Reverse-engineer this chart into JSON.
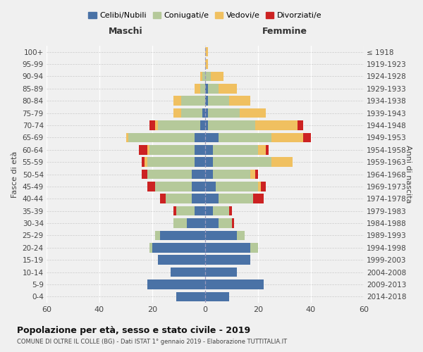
{
  "age_groups": [
    "0-4",
    "5-9",
    "10-14",
    "15-19",
    "20-24",
    "25-29",
    "30-34",
    "35-39",
    "40-44",
    "45-49",
    "50-54",
    "55-59",
    "60-64",
    "65-69",
    "70-74",
    "75-79",
    "80-84",
    "85-89",
    "90-94",
    "95-99",
    "100+"
  ],
  "birth_years": [
    "2014-2018",
    "2009-2013",
    "2004-2008",
    "1999-2003",
    "1994-1998",
    "1989-1993",
    "1984-1988",
    "1979-1983",
    "1974-1978",
    "1969-1973",
    "1964-1968",
    "1959-1963",
    "1954-1958",
    "1949-1953",
    "1944-1948",
    "1939-1943",
    "1934-1938",
    "1929-1933",
    "1924-1928",
    "1919-1923",
    "≤ 1918"
  ],
  "colors": {
    "celibi": "#4a72a6",
    "coniugati": "#b5c99a",
    "vedovi": "#f0c060",
    "divorziati": "#cc2222"
  },
  "maschi": {
    "celibi": [
      11,
      22,
      13,
      18,
      20,
      17,
      7,
      4,
      5,
      5,
      5,
      4,
      4,
      4,
      2,
      1,
      0,
      0,
      0,
      0,
      0
    ],
    "coniugati": [
      0,
      0,
      0,
      0,
      1,
      2,
      5,
      7,
      10,
      14,
      17,
      18,
      17,
      25,
      16,
      8,
      9,
      2,
      1,
      0,
      0
    ],
    "vedovi": [
      0,
      0,
      0,
      0,
      0,
      0,
      0,
      0,
      0,
      0,
      0,
      1,
      1,
      1,
      1,
      3,
      3,
      2,
      1,
      0,
      0
    ],
    "divorziati": [
      0,
      0,
      0,
      0,
      0,
      0,
      0,
      1,
      2,
      3,
      2,
      1,
      3,
      0,
      2,
      0,
      0,
      0,
      0,
      0,
      0
    ]
  },
  "femmine": {
    "celibi": [
      9,
      22,
      12,
      17,
      17,
      12,
      5,
      3,
      5,
      4,
      3,
      3,
      3,
      5,
      1,
      1,
      1,
      1,
      0,
      0,
      0
    ],
    "coniugati": [
      0,
      0,
      0,
      0,
      3,
      3,
      5,
      6,
      13,
      16,
      14,
      22,
      17,
      20,
      18,
      12,
      8,
      4,
      2,
      0,
      0
    ],
    "vedovi": [
      0,
      0,
      0,
      0,
      0,
      0,
      0,
      0,
      0,
      1,
      2,
      8,
      3,
      12,
      16,
      10,
      8,
      7,
      5,
      1,
      1
    ],
    "divorziati": [
      0,
      0,
      0,
      0,
      0,
      0,
      1,
      1,
      4,
      2,
      1,
      0,
      1,
      3,
      2,
      0,
      0,
      0,
      0,
      0,
      0
    ]
  },
  "xlim": 60,
  "title": "Popolazione per età, sesso e stato civile - 2019",
  "subtitle": "COMUNE DI OLTRE IL COLLE (BG) - Dati ISTAT 1° gennaio 2019 - Elaborazione TUTTITALIA.IT",
  "ylabel_left": "Fasce di età",
  "ylabel_right": "Anni di nascita",
  "xlabel_left": "Maschi",
  "xlabel_right": "Femmine",
  "background_color": "#f0f0f0",
  "legend_labels": [
    "Celibi/Nubili",
    "Coniugati/e",
    "Vedovi/e",
    "Divorziati/e"
  ]
}
